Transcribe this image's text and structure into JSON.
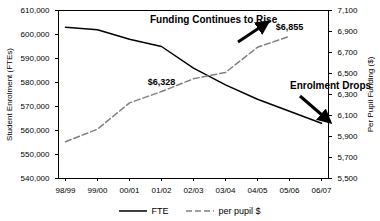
{
  "chart_data": {
    "type": "line",
    "categories": [
      "98/99",
      "99/00",
      "00/01",
      "01/02",
      "02/03",
      "03/04",
      "04/05",
      "05/06",
      "06/07"
    ],
    "series": [
      {
        "name": "FTE",
        "color": "#000000",
        "line_style": "solid",
        "axis": "y",
        "values": [
          603000,
          602000,
          598000,
          595000,
          586000,
          579000,
          573000,
          568000,
          563000
        ]
      },
      {
        "name": "per pupil $",
        "color": "#808080",
        "line_style": "dashed",
        "axis": "y2",
        "values": [
          5850,
          5970,
          6220,
          6328,
          6450,
          6510,
          6750,
          6855,
          null
        ],
        "value_labels": [
          null,
          null,
          null,
          "$6,328",
          null,
          null,
          null,
          "$6,855",
          null
        ]
      }
    ],
    "y_label": "Student Enrolment (FTEs)",
    "y2_label": "Per Pupil Funding ($)",
    "ylim": [
      540000,
      610000
    ],
    "yticks": [
      {
        "value": 540000,
        "label": "540,000"
      },
      {
        "value": 550000,
        "label": "550,000"
      },
      {
        "value": 560000,
        "label": "560,000"
      },
      {
        "value": 570000,
        "label": "570,000"
      },
      {
        "value": 580000,
        "label": "580,000"
      },
      {
        "value": 590000,
        "label": "590,000"
      },
      {
        "value": 600000,
        "label": "600,000"
      },
      {
        "value": 610000,
        "label": "610,000"
      }
    ],
    "y2lim": [
      5500,
      7100
    ],
    "y2ticks": [
      {
        "value": 5500,
        "label": "5,500"
      },
      {
        "value": 5700,
        "label": "5,700"
      },
      {
        "value": 5900,
        "label": "5,900"
      },
      {
        "value": 6100,
        "label": "6,100"
      },
      {
        "value": 6300,
        "label": "6,300"
      },
      {
        "value": 6500,
        "label": "6,500"
      },
      {
        "value": 6700,
        "label": "6,700"
      },
      {
        "value": 6900,
        "label": "6,900"
      },
      {
        "value": 7100,
        "label": "7,100"
      }
    ],
    "annotations": [
      "Funding Continues to Rise",
      "Enrolment Drops"
    ],
    "legend": "bottom",
    "grid": false
  }
}
